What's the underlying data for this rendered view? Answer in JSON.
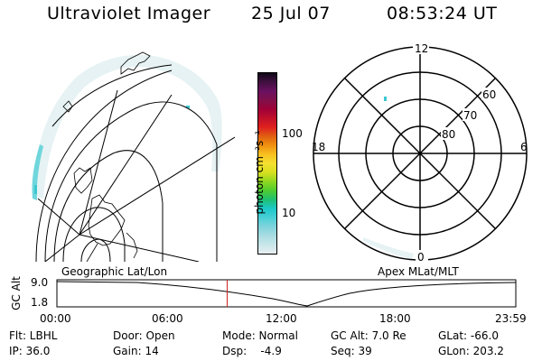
{
  "header": {
    "instrument": "Ultraviolet Imager",
    "date": "25 Jul 07",
    "time": "08:53:24 UT"
  },
  "colorbar": {
    "unit_label": "photon cm⁻²s⁻¹",
    "ticks": [
      {
        "value": 100,
        "label": "100"
      },
      {
        "value": 10,
        "label": "10"
      }
    ],
    "colors": [
      "#e8eef0",
      "#c8e6ea",
      "#a8dce2",
      "#7fd3dc",
      "#48d0d6",
      "#1cc8c8",
      "#20c070",
      "#50cc30",
      "#90d820",
      "#d8e020",
      "#f4e030",
      "#f8c020",
      "#f09010",
      "#e06010",
      "#e02020",
      "#c0102a",
      "#a00038",
      "#80104a",
      "#6a1060",
      "#401040",
      "#100818"
    ]
  },
  "polar_plot": {
    "mlt_labels": {
      "top": "12",
      "bottom": "0",
      "left": "18",
      "right": "6"
    },
    "lat_labels": [
      "60",
      "70",
      "80"
    ]
  },
  "timeline": {
    "y_axis_label": "GC Alt",
    "left_title": "Geographic Lat/Lon",
    "right_title": "Apex MLat/MLT",
    "y_ticks": [
      "9.0",
      "1.8"
    ],
    "x_ticks": [
      "00:00",
      "06:00",
      "12:00",
      "18:00",
      "23:59"
    ],
    "current_time_fraction": 0.371
  },
  "info": {
    "filter": "Flt: LBHL",
    "door": "Door: Open",
    "mode": "Mode: Normal",
    "gc_alt": "GC Alt: 7.0 Re",
    "glat": "GLat: -66.0",
    "ip": "IP: 36.0",
    "gain": "Gain: 14",
    "dsp": "Dsp:    -4.9",
    "seq": "Seq: 39",
    "glon": "GLon: 203.2"
  },
  "colors": {
    "auroral_emission": "#cfe7ea",
    "auroral_bright": "#3cc8d0",
    "time_marker": "#cc2020"
  }
}
